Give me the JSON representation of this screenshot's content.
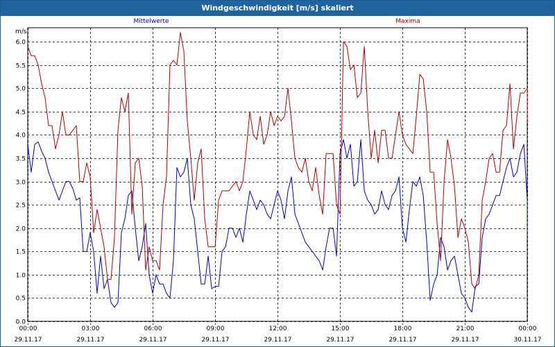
{
  "window": {
    "title": "Windgeschwindigkeit [m/s] skaliert"
  },
  "chart_data": {
    "type": "line",
    "title": "Windgeschwindigkeit [m/s] skaliert",
    "ylabel": "m/s",
    "ylim": [
      0,
      6.3
    ],
    "y_ticks": [
      "0.0",
      "0.5",
      "1.0",
      "1.5",
      "2.0",
      "2.5",
      "3.0",
      "3.5",
      "4.0",
      "4.5",
      "5.0",
      "5.5",
      "6.0"
    ],
    "x_ticks": [
      {
        "time": "00:00",
        "date": "29.11.17"
      },
      {
        "time": "03:00",
        "date": "29.11.17"
      },
      {
        "time": "06:00",
        "date": "29.11.17"
      },
      {
        "time": "09:00",
        "date": "29.11.17"
      },
      {
        "time": "12:00",
        "date": "29.11.17"
      },
      {
        "time": "15:00",
        "date": "29.11.17"
      },
      {
        "time": "18:00",
        "date": "29.11.17"
      },
      {
        "time": "21:00",
        "date": "29.11.17"
      },
      {
        "time": "00:00",
        "date": "30.11.17"
      }
    ],
    "x_range_hours": [
      0,
      24
    ],
    "x_step_hours": 0.1667,
    "grid": true,
    "series": [
      {
        "name": "Mittelwerte",
        "color": "#0000c0",
        "values": [
          3.8,
          3.2,
          3.8,
          3.85,
          3.65,
          3.5,
          3.2,
          3.0,
          2.8,
          2.6,
          2.8,
          3.0,
          3.0,
          2.85,
          2.6,
          2.65,
          1.5,
          1.5,
          1.9,
          1.5,
          0.6,
          1.4,
          0.7,
          0.9,
          0.4,
          0.3,
          0.4,
          1.9,
          2.2,
          2.7,
          2.8,
          2.0,
          1.3,
          1.6,
          2.1,
          1.0,
          0.6,
          1.0,
          0.8,
          0.8,
          0.6,
          0.5,
          1.3,
          3.3,
          3.1,
          3.2,
          3.5,
          2.5,
          2.2,
          1.5,
          0.8,
          0.8,
          1.4,
          0.7,
          0.75,
          0.75,
          1.5,
          1.6,
          2.0,
          2.0,
          1.8,
          2.0,
          1.7,
          2.3,
          2.8,
          2.6,
          2.4,
          2.6,
          2.5,
          2.3,
          2.2,
          2.5,
          2.8,
          2.6,
          2.2,
          2.8,
          3.1,
          2.3,
          2.1,
          1.9,
          1.7,
          1.6,
          1.5,
          1.4,
          1.3,
          1.1,
          1.6,
          2.0,
          2.0,
          1.4,
          3.6,
          3.9,
          3.5,
          3.8,
          2.9,
          3.0,
          3.9,
          2.8,
          2.6,
          2.5,
          2.3,
          2.4,
          2.8,
          2.5,
          2.4,
          2.7,
          2.8,
          3.1,
          2.0,
          1.7,
          2.4,
          3.0,
          2.9,
          3.1,
          2.7,
          1.7,
          0.45,
          0.8,
          1.0,
          1.8,
          1.6,
          1.1,
          1.3,
          1.4,
          1.0,
          0.6,
          0.5,
          0.3,
          0.2,
          0.75,
          0.8,
          1.8,
          2.2,
          2.3,
          2.5,
          2.7,
          2.7,
          3.0,
          3.3,
          3.5,
          3.1,
          3.2,
          3.6,
          3.8,
          2.6,
          1.8
        ]
      },
      {
        "name": "Maxima",
        "color": "#b00000",
        "values": [
          5.9,
          5.7,
          5.7,
          5.5,
          5.1,
          4.8,
          4.2,
          4.2,
          3.7,
          4.0,
          4.5,
          4.0,
          4.0,
          4.1,
          4.2,
          3.0,
          3.0,
          3.4,
          3.1,
          1.9,
          2.4,
          2.0,
          1.6,
          0.9,
          0.9,
          1.8,
          4.1,
          4.8,
          4.5,
          4.9,
          2.3,
          3.4,
          3.5,
          2.9,
          1.1,
          1.6,
          1.3,
          1.3,
          1.1,
          2.5,
          3.1,
          5.5,
          5.6,
          5.5,
          6.2,
          5.8,
          4.3,
          3.5,
          2.6,
          3.4,
          3.7,
          2.2,
          1.6,
          1.6,
          1.6,
          2.6,
          2.8,
          2.8,
          2.8,
          2.9,
          3.0,
          2.8,
          3.0,
          3.7,
          4.5,
          4.0,
          3.9,
          4.4,
          3.8,
          4.0,
          4.5,
          4.2,
          4.4,
          4.3,
          4.4,
          5.0,
          4.3,
          3.5,
          3.3,
          3.2,
          3.5,
          3.0,
          2.8,
          3.3,
          2.7,
          2.3,
          3.6,
          3.6,
          3.6,
          2.5,
          2.3,
          6.0,
          5.9,
          5.4,
          5.5,
          4.8,
          4.9,
          5.9,
          4.5,
          3.5,
          4.1,
          3.4,
          4.1,
          4.1,
          3.5,
          3.5,
          4.0,
          4.5,
          4.0,
          3.8,
          3.7,
          3.6,
          4.4,
          5.3,
          5.2,
          4.5,
          3.2,
          3.2,
          2.1,
          1.3,
          3.0,
          3.9,
          3.5,
          2.9,
          1.8,
          2.2,
          2.0,
          1.7,
          0.8,
          0.7,
          1.0,
          2.6,
          3.0,
          3.5,
          3.6,
          3.2,
          3.2,
          4.1,
          4.2,
          5.1,
          3.7,
          4.4,
          4.9,
          4.9,
          5.0,
          4.3
        ]
      }
    ]
  }
}
